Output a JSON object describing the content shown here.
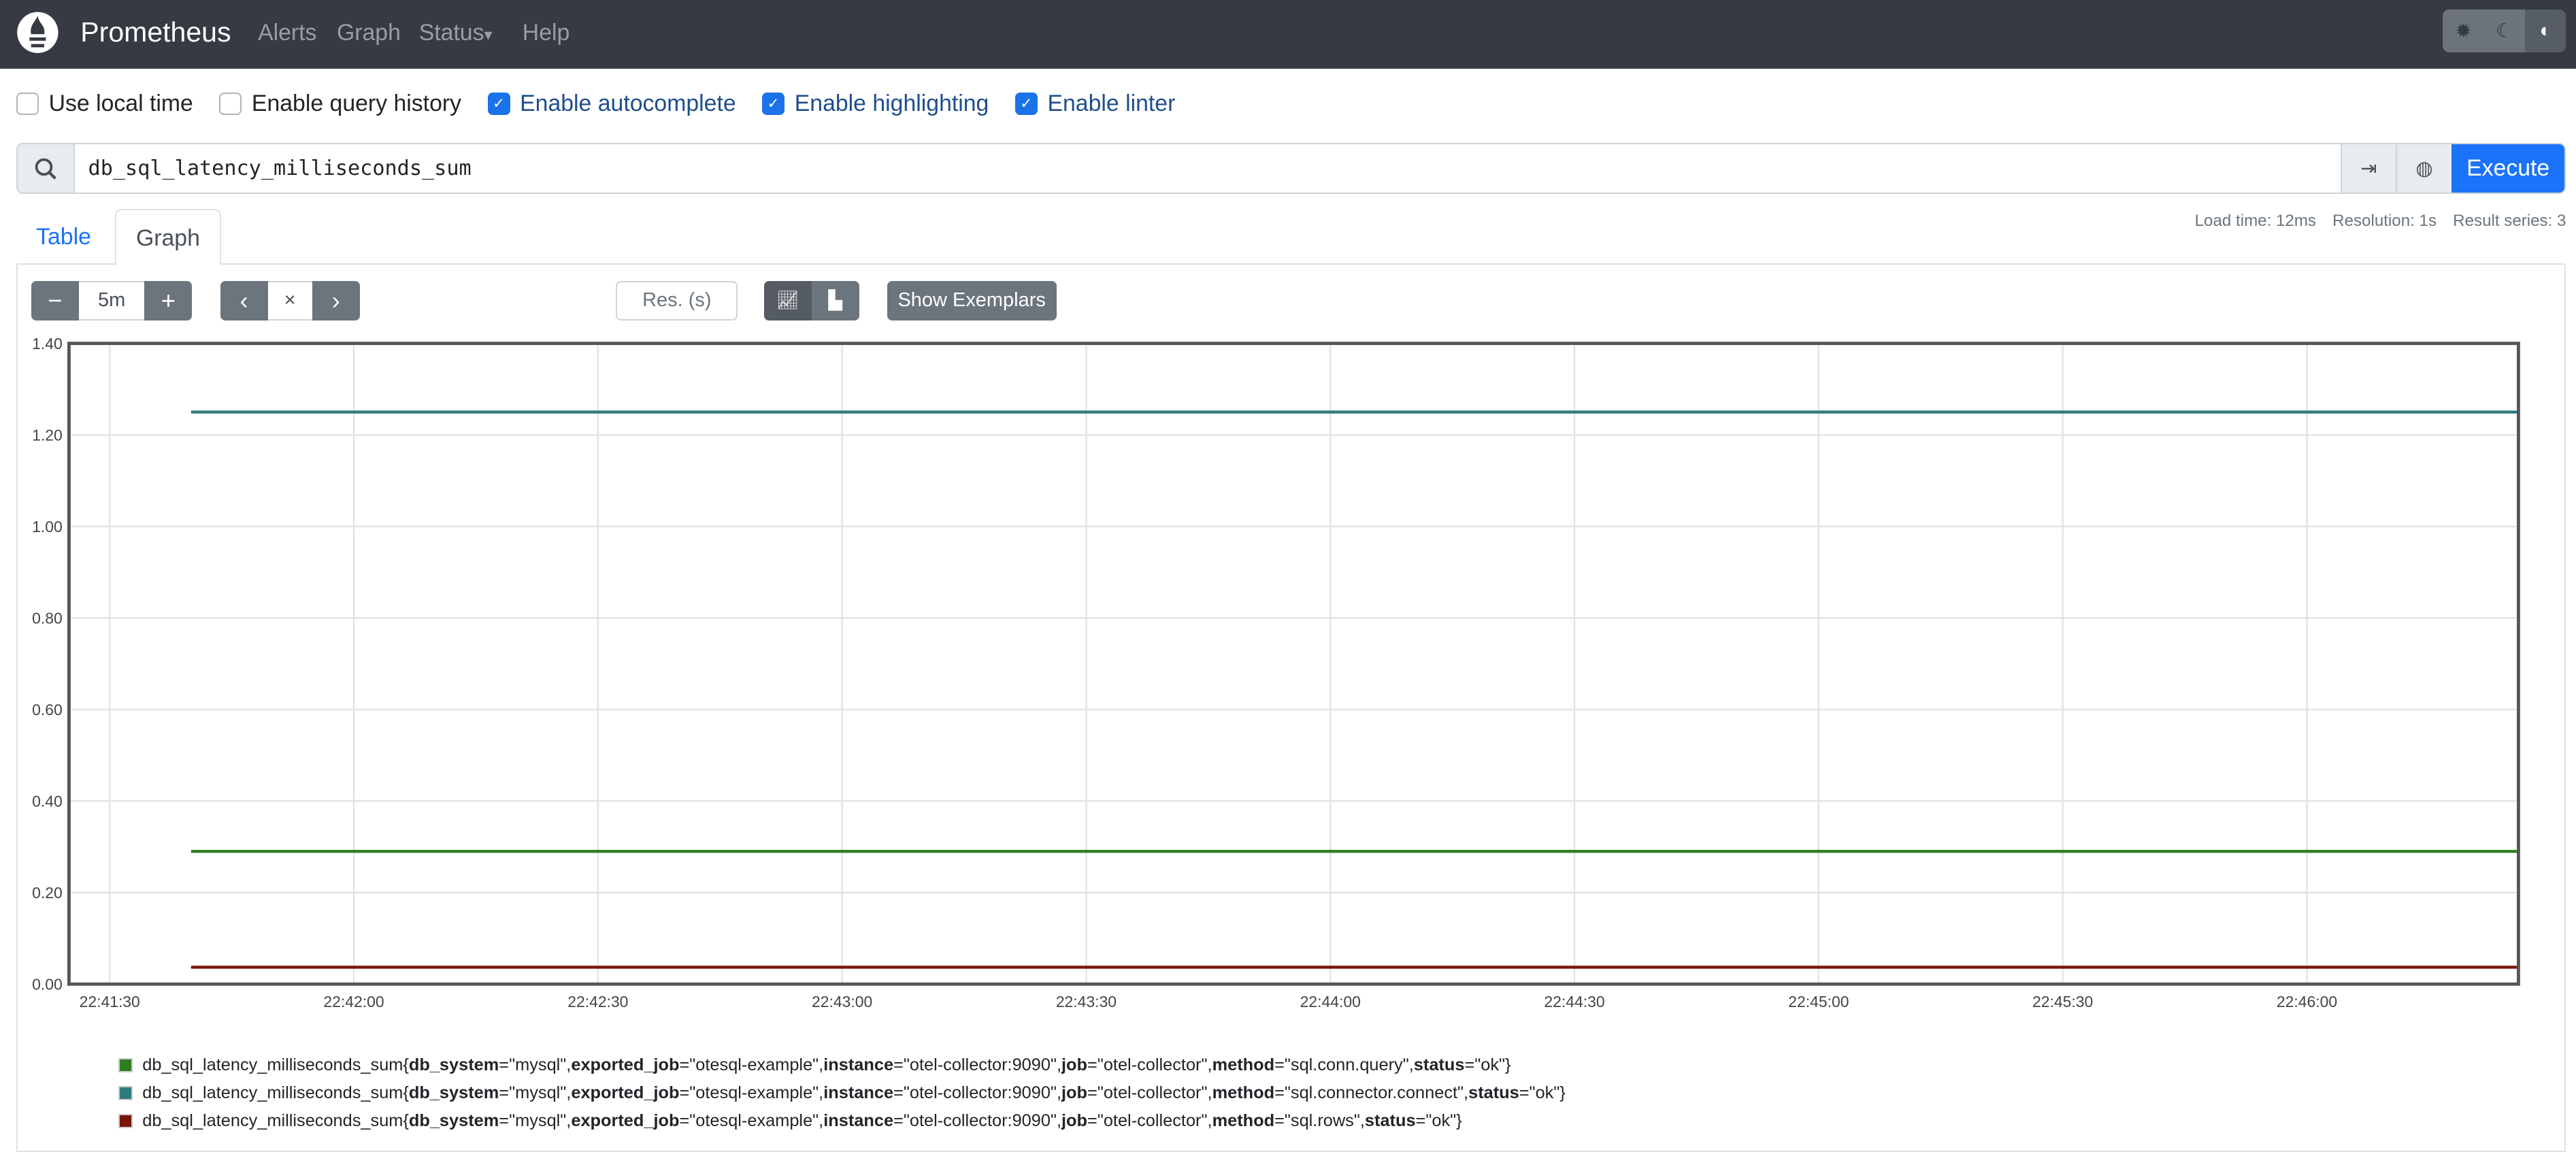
{
  "navbar": {
    "brand": "Prometheus",
    "links": [
      {
        "label": "Alerts"
      },
      {
        "label": "Graph"
      },
      {
        "label": "Status",
        "caret": "▾"
      },
      {
        "label": "Help"
      }
    ],
    "theme_buttons": [
      "sun-icon",
      "moon-icon",
      "contrast-icon"
    ],
    "theme_active": "contrast-icon"
  },
  "options": [
    {
      "label": "Use local time",
      "checked": false
    },
    {
      "label": "Enable query history",
      "checked": false
    },
    {
      "label": "Enable autocomplete",
      "checked": true
    },
    {
      "label": "Enable highlighting",
      "checked": true
    },
    {
      "label": "Enable linter",
      "checked": true
    }
  ],
  "query": {
    "value": "db_sql_latency_milliseconds_sum",
    "execute_label": "Execute"
  },
  "tabs": [
    {
      "label": "Table"
    },
    {
      "label": "Graph",
      "active": true
    }
  ],
  "stats": {
    "load_time": "Load time: 12ms",
    "resolution": "Resolution: 1s",
    "result_series": "Result series: 3"
  },
  "controls": {
    "range": "5m",
    "minus": "−",
    "plus": "+",
    "prev": "‹",
    "clear": "×",
    "next": "›",
    "res_placeholder": "Res. (s)",
    "show_exemplars": "Show Exemplars"
  },
  "chart_data": {
    "type": "line",
    "ylim": [
      0,
      1.4
    ],
    "xlim": [
      "22:41:25",
      "22:46:26"
    ],
    "grid": true,
    "y_ticks": [
      "0.00",
      "0.20",
      "0.40",
      "0.60",
      "0.80",
      "1.00",
      "1.20",
      "1.40"
    ],
    "x_ticks": [
      "22:41:30",
      "22:42:00",
      "22:42:30",
      "22:43:00",
      "22:43:30",
      "22:44:00",
      "22:44:30",
      "22:45:00",
      "22:45:30",
      "22:46:00"
    ],
    "legend_placement": "bottom",
    "series": [
      {
        "metric": "db_sql_latency_milliseconds_sum",
        "labels": [
          [
            "db_system",
            "mysql"
          ],
          [
            "exported_job",
            "otesql-example"
          ],
          [
            "instance",
            "otel-collector:9090"
          ],
          [
            "job",
            "otel-collector"
          ],
          [
            "method",
            "sql.conn.query"
          ],
          [
            "status",
            "ok"
          ]
        ],
        "color": "#2f7d1f",
        "x": [
          "22:41:40",
          "22:46:26"
        ],
        "values": [
          0.29,
          0.29
        ]
      },
      {
        "metric": "db_sql_latency_milliseconds_sum",
        "labels": [
          [
            "db_system",
            "mysql"
          ],
          [
            "exported_job",
            "otesql-example"
          ],
          [
            "instance",
            "otel-collector:9090"
          ],
          [
            "job",
            "otel-collector"
          ],
          [
            "method",
            "sql.connector.connect"
          ],
          [
            "status",
            "ok"
          ]
        ],
        "color": "#2e7b7b",
        "x": [
          "22:41:40",
          "22:46:26"
        ],
        "values": [
          1.25,
          1.25
        ]
      },
      {
        "metric": "db_sql_latency_milliseconds_sum",
        "labels": [
          [
            "db_system",
            "mysql"
          ],
          [
            "exported_job",
            "otesql-example"
          ],
          [
            "instance",
            "otel-collector:9090"
          ],
          [
            "job",
            "otel-collector"
          ],
          [
            "method",
            "sql.rows"
          ],
          [
            "status",
            "ok"
          ]
        ],
        "color": "#7a1406",
        "x": [
          "22:41:40",
          "22:46:26"
        ],
        "values": [
          0.037,
          0.037
        ]
      }
    ]
  }
}
